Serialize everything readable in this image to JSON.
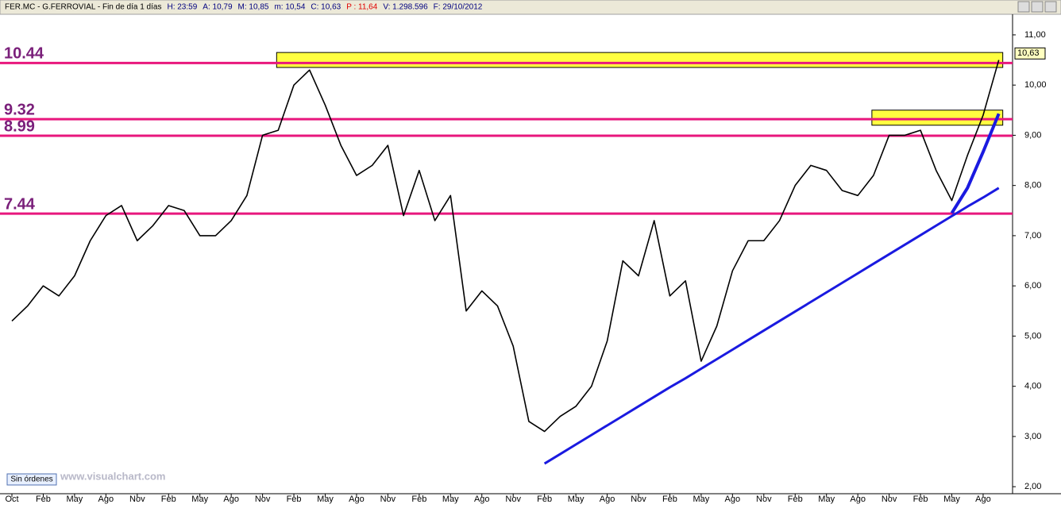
{
  "header": {
    "fields": [
      {
        "text": "FER.MC - G.FERROVIAL - Fin de día 1 días",
        "color": "#000000"
      },
      {
        "text": "H: 23:59",
        "color": "#000080"
      },
      {
        "text": "A: 10,79",
        "color": "#000080"
      },
      {
        "text": "M: 10,85",
        "color": "#000080"
      },
      {
        "text": "m: 10,54",
        "color": "#000080"
      },
      {
        "text": "C: 10,63",
        "color": "#000080"
      },
      {
        "text": "P : 11,64",
        "color": "#e00000"
      },
      {
        "text": "V: 1.298.596",
        "color": "#000080"
      },
      {
        "text": "F: 29/10/2012",
        "color": "#000080"
      }
    ]
  },
  "footer": {
    "status": "Sin órdenes",
    "watermark": "www.visualchart.com"
  },
  "chart_data": {
    "type": "line",
    "categories": [
      "Oct",
      null,
      "Feb",
      null,
      "May",
      null,
      "Ago",
      null,
      "Nov",
      null,
      "Feb",
      null,
      "May",
      null,
      "Ago",
      null,
      "Nov",
      null,
      "Feb",
      null,
      "May",
      null,
      "Ago",
      null,
      "Nov",
      null,
      "Feb",
      null,
      "May",
      null,
      "Ago",
      null,
      "Nov",
      null,
      "Feb",
      null,
      "May",
      null,
      "Ago",
      null,
      "Nov",
      null,
      "Feb",
      null,
      "May",
      null,
      "Ago",
      null,
      "Nov",
      null,
      "Feb",
      null,
      "May",
      null,
      "Ago",
      null,
      "Nov",
      null,
      "Feb",
      null,
      "May",
      null,
      "Ago",
      null
    ],
    "series": [
      {
        "color": "#000000",
        "width": 1.6,
        "values": [
          5.3,
          5.6,
          6.0,
          5.8,
          6.2,
          6.9,
          7.4,
          7.6,
          6.9,
          7.2,
          7.6,
          7.5,
          7.0,
          7.0,
          7.3,
          7.8,
          9.0,
          9.1,
          10.0,
          10.3,
          9.6,
          8.8,
          8.2,
          8.4,
          8.8,
          7.4,
          8.3,
          7.3,
          7.8,
          5.5,
          5.9,
          5.6,
          4.8,
          3.3,
          3.1,
          3.4,
          3.6,
          4.0,
          4.9,
          6.5,
          6.2,
          7.3,
          5.8,
          6.1,
          4.5,
          5.2,
          6.3,
          6.9,
          6.9,
          7.3,
          8.0,
          8.4,
          8.3,
          7.9,
          7.8,
          8.2,
          9.0,
          9.0,
          9.1,
          8.3,
          7.7,
          8.6,
          9.4,
          10.5
        ]
      },
      {
        "color": "#1a1ae0",
        "width": 3,
        "values": [
          null,
          null,
          null,
          null,
          null,
          null,
          null,
          null,
          null,
          null,
          null,
          null,
          null,
          null,
          null,
          null,
          null,
          null,
          null,
          null,
          null,
          null,
          null,
          null,
          null,
          null,
          null,
          null,
          null,
          null,
          null,
          null,
          null,
          null,
          2.46,
          2.65,
          2.84,
          3.03,
          3.22,
          3.41,
          3.6,
          3.79,
          3.98,
          4.16,
          4.35,
          4.54,
          4.73,
          4.92,
          5.11,
          5.3,
          5.49,
          5.68,
          5.87,
          6.06,
          6.25,
          6.44,
          6.63,
          6.82,
          7.01,
          7.2,
          7.39,
          7.58,
          7.76,
          7.95
        ]
      },
      {
        "color": "#1a1ae0",
        "width": 4,
        "values": [
          null,
          null,
          null,
          null,
          null,
          null,
          null,
          null,
          null,
          null,
          null,
          null,
          null,
          null,
          null,
          null,
          null,
          null,
          null,
          null,
          null,
          null,
          null,
          null,
          null,
          null,
          null,
          null,
          null,
          null,
          null,
          null,
          null,
          null,
          null,
          null,
          null,
          null,
          null,
          null,
          null,
          null,
          null,
          null,
          null,
          null,
          null,
          null,
          null,
          null,
          null,
          null,
          null,
          null,
          null,
          null,
          null,
          null,
          null,
          null,
          7.45,
          7.95,
          8.67,
          9.43
        ]
      }
    ],
    "bands": [
      {
        "color": "#ffff40",
        "low": [
          null,
          null,
          null,
          null,
          null,
          null,
          null,
          null,
          null,
          null,
          null,
          null,
          null,
          null,
          null,
          null,
          null,
          10.35,
          10.35,
          10.35,
          10.35,
          10.35,
          10.35,
          10.35,
          10.35,
          10.35,
          10.35,
          10.35,
          10.35,
          10.35,
          10.35,
          10.35,
          10.35,
          10.35,
          10.35,
          10.35,
          10.35,
          10.35,
          10.35,
          10.35,
          10.35,
          10.35,
          10.35,
          10.35,
          10.35,
          10.35,
          10.35,
          10.35,
          10.35,
          10.35,
          10.35,
          10.35,
          10.35,
          10.35,
          10.35,
          10.35,
          10.35,
          10.35,
          10.35,
          10.35,
          10.35,
          10.35,
          10.35,
          10.35
        ],
        "high": [
          null,
          null,
          null,
          null,
          null,
          null,
          null,
          null,
          null,
          null,
          null,
          null,
          null,
          null,
          null,
          null,
          null,
          10.65,
          10.65,
          10.65,
          10.65,
          10.65,
          10.65,
          10.65,
          10.65,
          10.65,
          10.65,
          10.65,
          10.65,
          10.65,
          10.65,
          10.65,
          10.65,
          10.65,
          10.65,
          10.65,
          10.65,
          10.65,
          10.65,
          10.65,
          10.65,
          10.65,
          10.65,
          10.65,
          10.65,
          10.65,
          10.65,
          10.65,
          10.65,
          10.65,
          10.65,
          10.65,
          10.65,
          10.65,
          10.65,
          10.65,
          10.65,
          10.65,
          10.65,
          10.65,
          10.65,
          10.65,
          10.65,
          10.65
        ]
      },
      {
        "color": "#ffff40",
        "low": [
          null,
          null,
          null,
          null,
          null,
          null,
          null,
          null,
          null,
          null,
          null,
          null,
          null,
          null,
          null,
          null,
          null,
          null,
          null,
          null,
          null,
          null,
          null,
          null,
          null,
          null,
          null,
          null,
          null,
          null,
          null,
          null,
          null,
          null,
          null,
          null,
          null,
          null,
          null,
          null,
          null,
          null,
          null,
          null,
          null,
          null,
          null,
          null,
          null,
          null,
          null,
          null,
          null,
          null,
          null,
          9.2,
          9.2,
          9.2,
          9.2,
          9.2,
          9.2,
          9.2,
          9.2,
          9.2
        ],
        "high": [
          null,
          null,
          null,
          null,
          null,
          null,
          null,
          null,
          null,
          null,
          null,
          null,
          null,
          null,
          null,
          null,
          null,
          null,
          null,
          null,
          null,
          null,
          null,
          null,
          null,
          null,
          null,
          null,
          null,
          null,
          null,
          null,
          null,
          null,
          null,
          null,
          null,
          null,
          null,
          null,
          null,
          null,
          null,
          null,
          null,
          null,
          null,
          null,
          null,
          null,
          null,
          null,
          null,
          null,
          null,
          9.5,
          9.5,
          9.5,
          9.5,
          9.5,
          9.5,
          9.5,
          9.5,
          9.5
        ]
      }
    ],
    "levels": [
      {
        "value": 10.44,
        "color": "#e8177d"
      },
      {
        "value": 9.32,
        "color": "#e8177d"
      },
      {
        "value": 8.99,
        "color": "#e8177d"
      },
      {
        "value": 7.44,
        "color": "#e8177d"
      }
    ],
    "last_price": {
      "value": 10.63,
      "label": "10,63"
    },
    "ylim": [
      1.86,
      11.41
    ],
    "yticks": [
      {
        "value": 2,
        "label": "2,00"
      },
      {
        "value": 3,
        "label": "3,00"
      },
      {
        "value": 4,
        "label": "4,00"
      },
      {
        "value": 5,
        "label": "5,00"
      },
      {
        "value": 6,
        "label": "6,00"
      },
      {
        "value": 7,
        "label": "7,00"
      },
      {
        "value": 8,
        "label": "8,00"
      },
      {
        "value": 9,
        "label": "9,00"
      },
      {
        "value": 10,
        "label": "10,00"
      },
      {
        "value": 11,
        "label": "11,00"
      }
    ]
  }
}
